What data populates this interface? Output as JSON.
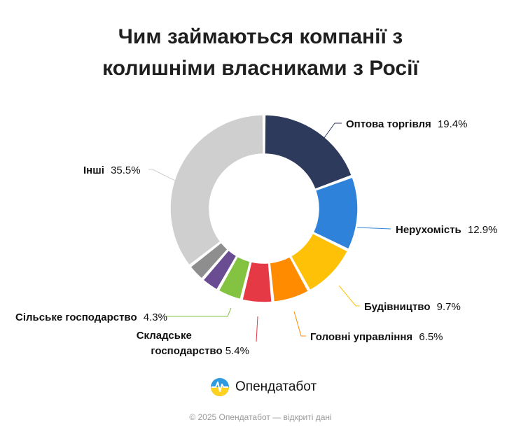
{
  "title": {
    "line1": "Чим займаються компанії з",
    "line2": "колишніми власниками з Росії"
  },
  "chart_data": {
    "type": "pie",
    "donut": true,
    "unit": "%",
    "categories": [
      "Оптова торгівля",
      "Нерухомість",
      "Будівництво",
      "Головні управління",
      "Складське господарство",
      "Сільське господарство",
      "",
      "",
      "Інші"
    ],
    "values": [
      19.4,
      12.9,
      9.7,
      6.5,
      5.4,
      4.3,
      3.2,
      3.1,
      35.5
    ],
    "colors": [
      "#2d3a5c",
      "#2e82da",
      "#ffc107",
      "#ff8c00",
      "#e63946",
      "#84c341",
      "#6a4c93",
      "#8e8e8e",
      "#cfcfcf"
    ],
    "labels": [
      {
        "name": "Оптова торгівля",
        "value": "19.4%"
      },
      {
        "name": "Нерухомість",
        "value": "12.9%"
      },
      {
        "name": "Будівництво",
        "value": "9.7%"
      },
      {
        "name": "Головні управління",
        "value": "6.5%"
      },
      {
        "name": "Складське господарство",
        "value": "5.4%"
      },
      {
        "name": "Сільське господарство",
        "value": "4.3%"
      },
      {
        "name": "Інші",
        "value": "35.5%"
      }
    ]
  },
  "brand": {
    "name": "Опендатабот"
  },
  "footer": {
    "text": "© 2025 Опендатабот — відкриті дані"
  }
}
